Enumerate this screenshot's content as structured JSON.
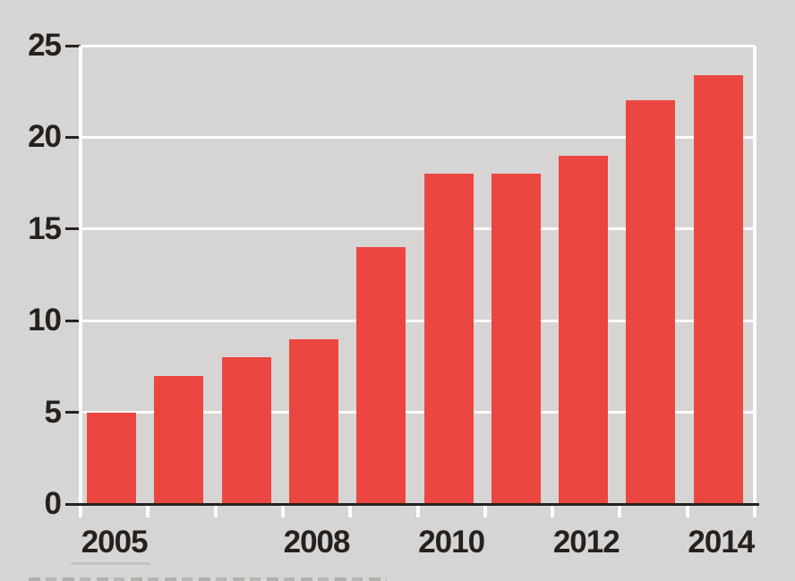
{
  "chart_data": {
    "type": "bar",
    "title": "",
    "categories": [
      "2005",
      "2006",
      "2007",
      "2008",
      "2009",
      "2010",
      "2011",
      "2012",
      "2013",
      "2014"
    ],
    "values": [
      5,
      7,
      8,
      9,
      14,
      18,
      18,
      19,
      22,
      23.4
    ],
    "x_axis_labels": [
      "2005",
      "2008",
      "2010",
      "2012",
      "2014"
    ],
    "yticks": [
      0,
      5,
      10,
      15,
      20,
      25
    ],
    "ygrid": [
      5,
      10,
      15,
      20,
      25
    ],
    "xlabel": "",
    "ylabel": "",
    "ylim": [
      0,
      25
    ],
    "grid": "horizontal white gridlines, white vertical axis and right edge, white ticks below baseline",
    "legend": "none",
    "colors": {
      "background": "#d6d5d3",
      "bar": "#ec4641",
      "gridline": "#fdfdfc",
      "axis_text": "#27211e",
      "baseline": "#27211e"
    }
  },
  "artifacts": {
    "bottom_cropped_text": "unreadable tops of a cropped caption line at the bottom edge"
  }
}
